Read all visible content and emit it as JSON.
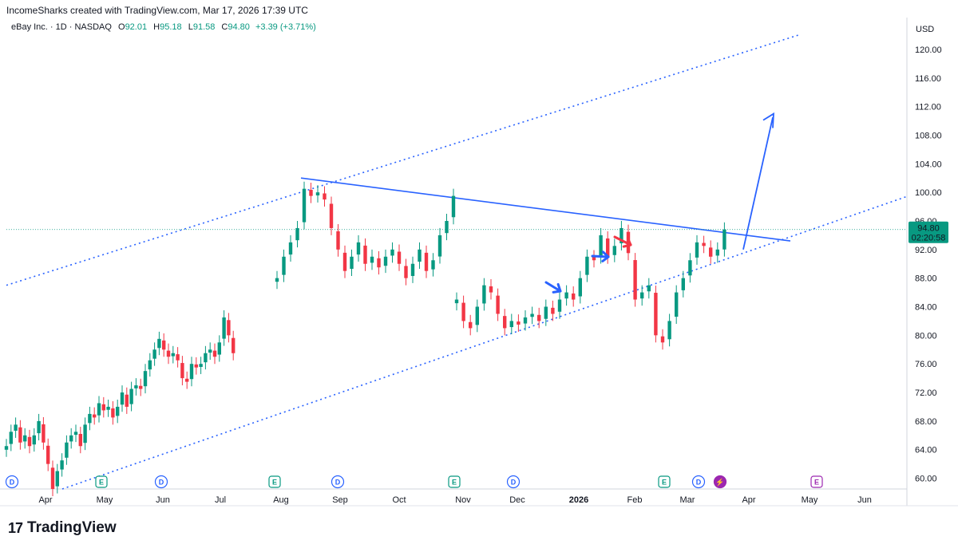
{
  "header": {
    "credit": "IncomeSharks created with TradingView.com, Mar 17, 2026 17:39 UTC"
  },
  "legend": {
    "symbol": "eBay Inc. · 1D · NASDAQ",
    "open_label": "O",
    "open": "92.01",
    "high_label": "H",
    "high": "95.18",
    "low_label": "L",
    "low": "91.58",
    "close_label": "C",
    "close": "94.80",
    "change": "+3.39 (+3.71%)"
  },
  "brand": {
    "name": "TradingView",
    "logo": "17"
  },
  "colors": {
    "up": "#089981",
    "down": "#f23645",
    "annotation": "#2962ff",
    "red_arrow": "#f23645",
    "price_tag": "#089981",
    "earnings": "#089981",
    "dividend": "#2962ff",
    "split": "#9c27b0"
  },
  "chart_data": {
    "type": "candlestick",
    "currency": "USD",
    "ylim": [
      58.5,
      122
    ],
    "y_ticks": [
      60,
      64,
      68,
      72,
      76,
      80,
      84,
      88,
      92,
      96,
      100,
      104,
      108,
      112,
      116,
      120
    ],
    "x_labels": [
      "Apr",
      "May",
      "Jun",
      "Jul",
      "Aug",
      "Sep",
      "Oct",
      "Nov",
      "Dec",
      "2026",
      "Feb",
      "Mar",
      "Apr",
      "May",
      "Jun"
    ],
    "last_price": {
      "value": "94.80",
      "countdown": "02:20:58"
    },
    "series": [
      {
        "name": "Apr",
        "points": [
          [
            0,
            64.5
          ],
          [
            1,
            66.5
          ],
          [
            2,
            67.5
          ],
          [
            3,
            65
          ],
          [
            4,
            66
          ],
          [
            5,
            64.5
          ],
          [
            6,
            66
          ],
          [
            7,
            68
          ],
          [
            8,
            65
          ],
          [
            9,
            62
          ],
          [
            10,
            58.5
          ],
          [
            11,
            61
          ],
          [
            12,
            62.5
          ],
          [
            13,
            65
          ],
          [
            14,
            66
          ],
          [
            15,
            66.5
          ],
          [
            16,
            64.5
          ],
          [
            17,
            67.5
          ],
          [
            18,
            69
          ],
          [
            19,
            68.5
          ],
          [
            20,
            70.5
          ],
          [
            21,
            69.5
          ],
          [
            22,
            70
          ],
          [
            23,
            68.5
          ],
          [
            24,
            70
          ],
          [
            25,
            72
          ],
          [
            26,
            70
          ],
          [
            27,
            72.5
          ],
          [
            28,
            73
          ],
          [
            29,
            72.5
          ],
          [
            30,
            75
          ],
          [
            31,
            76.5
          ],
          [
            32,
            78
          ],
          [
            33,
            79.5
          ],
          [
            34,
            78
          ],
          [
            35,
            77
          ],
          [
            36,
            77.5
          ],
          [
            37,
            76.5
          ],
          [
            38,
            74
          ],
          [
            39,
            73.5
          ],
          [
            40,
            76
          ],
          [
            41,
            75.5
          ],
          [
            42,
            76
          ],
          [
            43,
            77.5
          ],
          [
            44,
            78
          ],
          [
            45,
            77
          ],
          [
            46,
            79
          ],
          [
            47,
            82.5
          ],
          [
            48,
            80
          ],
          [
            49,
            77.5
          ]
        ]
      },
      {
        "name": "Aug",
        "points": [
          [
            0,
            88
          ],
          [
            1,
            91
          ],
          [
            2,
            93
          ],
          [
            3,
            95
          ],
          [
            4,
            100.5
          ],
          [
            5,
            99.5
          ],
          [
            6,
            100
          ],
          [
            7,
            99
          ],
          [
            8,
            95
          ],
          [
            9,
            92
          ],
          [
            10,
            89
          ],
          [
            11,
            91
          ],
          [
            12,
            93
          ],
          [
            13,
            90
          ],
          [
            14,
            91
          ],
          [
            15,
            89.5
          ],
          [
            16,
            91
          ],
          [
            17,
            92
          ],
          [
            18,
            90
          ],
          [
            19,
            88
          ],
          [
            20,
            90
          ],
          [
            21,
            92
          ],
          [
            22,
            89
          ],
          [
            23,
            90.5
          ],
          [
            24,
            94
          ],
          [
            25,
            96
          ],
          [
            26,
            99.5
          ]
        ]
      },
      {
        "name": "Nov",
        "points": [
          [
            0,
            85
          ],
          [
            1,
            82
          ],
          [
            2,
            81
          ],
          [
            3,
            84
          ],
          [
            4,
            87
          ],
          [
            5,
            86
          ],
          [
            6,
            83
          ],
          [
            7,
            81
          ],
          [
            8,
            82
          ],
          [
            9,
            81.5
          ],
          [
            10,
            82.5
          ],
          [
            11,
            83
          ],
          [
            12,
            82
          ],
          [
            13,
            84
          ],
          [
            14,
            83
          ],
          [
            15,
            85
          ],
          [
            16,
            86
          ],
          [
            17,
            85
          ],
          [
            18,
            88
          ],
          [
            19,
            91
          ],
          [
            20,
            90.5
          ],
          [
            21,
            94
          ],
          [
            22,
            91
          ],
          [
            23,
            92.5
          ],
          [
            24,
            95
          ],
          [
            25,
            91.5
          ],
          [
            26,
            85
          ],
          [
            27,
            86
          ],
          [
            28,
            87
          ],
          [
            29,
            80
          ],
          [
            30,
            79
          ],
          [
            31,
            82
          ],
          [
            32,
            86
          ],
          [
            33,
            88
          ],
          [
            34,
            90.5
          ],
          [
            35,
            93
          ],
          [
            36,
            92.5
          ],
          [
            37,
            91
          ],
          [
            38,
            92
          ],
          [
            39,
            94.8
          ]
        ]
      }
    ],
    "lines": [
      {
        "name": "descending resistance",
        "from": [
          "2025-08-05",
          102
        ],
        "to": [
          "2026-04-22",
          93.2
        ]
      },
      {
        "name": "channel lower",
        "from": [
          "2025-04-10",
          58.5
        ],
        "to": [
          "2026-06-26",
          99.5
        ]
      },
      {
        "name": "channel upper",
        "from": [
          "2025-04-01",
          87
        ],
        "to": [
          "2026-06-15",
          122
        ]
      }
    ],
    "events": [
      {
        "label": "D",
        "date": "Apr"
      },
      {
        "label": "E",
        "date": "Apr"
      },
      {
        "label": "D",
        "date": "May"
      },
      {
        "label": "E",
        "date": "Jul"
      },
      {
        "label": "D",
        "date": "Aug"
      },
      {
        "label": "E",
        "date": "Oct"
      },
      {
        "label": "D",
        "date": "Nov"
      },
      {
        "label": "E",
        "date": "Feb"
      },
      {
        "label": "D",
        "date": "Feb"
      },
      {
        "label": "⚡",
        "date": "Mar"
      },
      {
        "label": "E",
        "date": "Apr"
      }
    ]
  }
}
